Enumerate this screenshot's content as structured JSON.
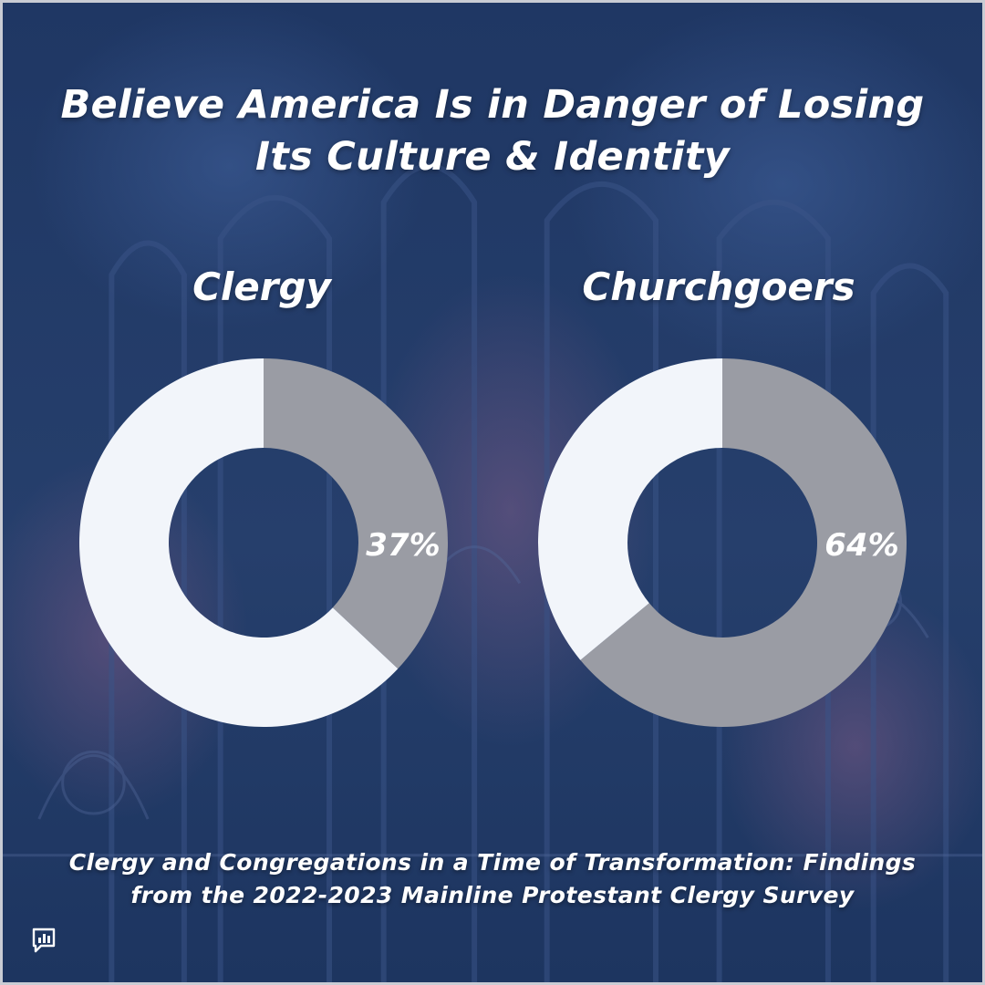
{
  "title_line1": "Believe America Is in Danger of Losing",
  "title_line2": "Its Culture & Identity",
  "source_line1": "Clergy and Congregations in a Time of Transformation: Findings",
  "source_line2": "from the 2022-2023 Mainline Protestant Clergy Survey",
  "colors": {
    "background": "#223b66",
    "value_segment": "#9a9ca4",
    "remainder_segment": "#f2f5fa",
    "text": "#ffffff"
  },
  "logo_icon": "bar-chart-speech-bubble-icon",
  "chart_data": [
    {
      "type": "pie",
      "title": "Clergy",
      "value": 37,
      "label": "37%",
      "unit": "%"
    },
    {
      "type": "pie",
      "title": "Churchgoers",
      "value": 64,
      "label": "64%",
      "unit": "%"
    }
  ]
}
